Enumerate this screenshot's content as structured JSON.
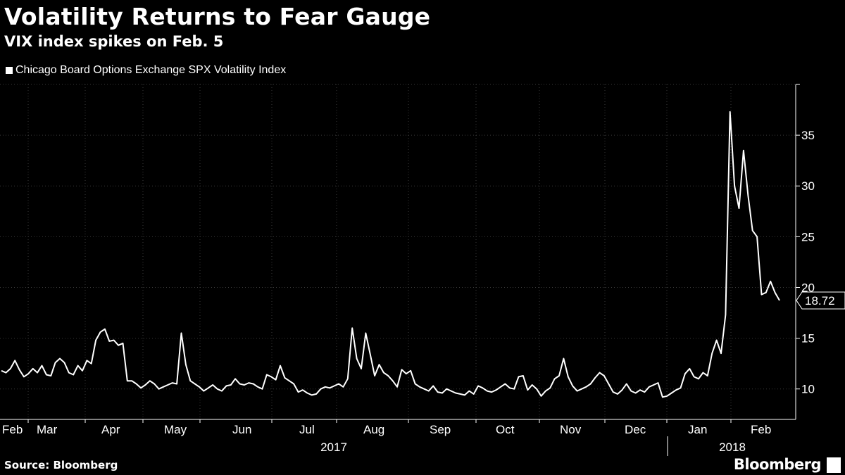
{
  "title": "Volatility Returns to Fear Gauge",
  "subtitle": "VIX index spikes on Feb. 5",
  "source": "Source: Bloomberg",
  "brand": "Bloomberg",
  "chart_data": {
    "type": "line",
    "title": "Volatility Returns to Fear Gauge",
    "subtitle": "VIX index spikes on Feb. 5",
    "series": [
      {
        "name": "Chicago Board Options Exchange SPX Volatility Index",
        "color": "#ffffff",
        "last_value_label": "18.72",
        "values": [
          11.8,
          11.6,
          12.0,
          12.8,
          11.9,
          11.2,
          11.5,
          12.0,
          11.6,
          12.3,
          11.4,
          11.3,
          12.6,
          13.0,
          12.6,
          11.6,
          11.4,
          12.3,
          11.8,
          12.8,
          12.5,
          14.8,
          15.6,
          15.9,
          14.7,
          14.8,
          14.3,
          14.5,
          10.8,
          10.8,
          10.5,
          10.1,
          10.4,
          10.8,
          10.5,
          10.0,
          10.2,
          10.4,
          10.6,
          10.5,
          15.5,
          12.4,
          10.8,
          10.5,
          10.2,
          9.8,
          10.1,
          10.4,
          10.0,
          9.8,
          10.3,
          10.4,
          11.0,
          10.5,
          10.4,
          10.6,
          10.5,
          10.2,
          10.0,
          11.4,
          11.2,
          10.9,
          12.3,
          11.1,
          10.8,
          10.5,
          9.7,
          9.9,
          9.6,
          9.4,
          9.5,
          10.0,
          10.2,
          10.1,
          10.3,
          10.5,
          10.2,
          11.0,
          16.0,
          13.0,
          12.0,
          15.5,
          13.4,
          11.3,
          12.4,
          11.6,
          11.3,
          10.8,
          10.2,
          11.9,
          11.5,
          11.8,
          10.5,
          10.2,
          10.0,
          9.8,
          10.3,
          9.7,
          9.6,
          10.0,
          9.8,
          9.6,
          9.5,
          9.4,
          9.8,
          9.5,
          10.3,
          10.1,
          9.8,
          9.7,
          9.9,
          10.2,
          10.5,
          10.1,
          10.0,
          11.2,
          11.3,
          9.9,
          10.4,
          10.0,
          9.3,
          9.8,
          10.1,
          11.0,
          11.3,
          13.0,
          11.2,
          10.3,
          9.8,
          10.0,
          10.2,
          10.5,
          11.1,
          11.6,
          11.3,
          10.5,
          9.7,
          9.5,
          9.9,
          10.5,
          9.8,
          9.6,
          9.9,
          9.7,
          10.2,
          10.4,
          10.6,
          9.2,
          9.3,
          9.6,
          9.9,
          10.1,
          11.5,
          12.0,
          11.2,
          11.0,
          11.6,
          11.3,
          13.5,
          14.8,
          13.5,
          17.3,
          37.3,
          30.0,
          27.8,
          33.5,
          29.1,
          25.6,
          25.0,
          19.3,
          19.5,
          20.6,
          19.5,
          18.72
        ]
      }
    ],
    "x_month_labels": [
      "Feb",
      "Mar",
      "Apr",
      "May",
      "Jun",
      "Jul",
      "Aug",
      "Sep",
      "Oct",
      "Nov",
      "Dec",
      "Jan",
      "Feb"
    ],
    "x_year_labels": [
      "2017",
      "2018"
    ],
    "y_axis_position": "right",
    "y_ticks": [
      10,
      15,
      20,
      25,
      30,
      35
    ],
    "ylim": [
      7,
      40
    ],
    "grid": true,
    "legend_position": "top-left"
  }
}
